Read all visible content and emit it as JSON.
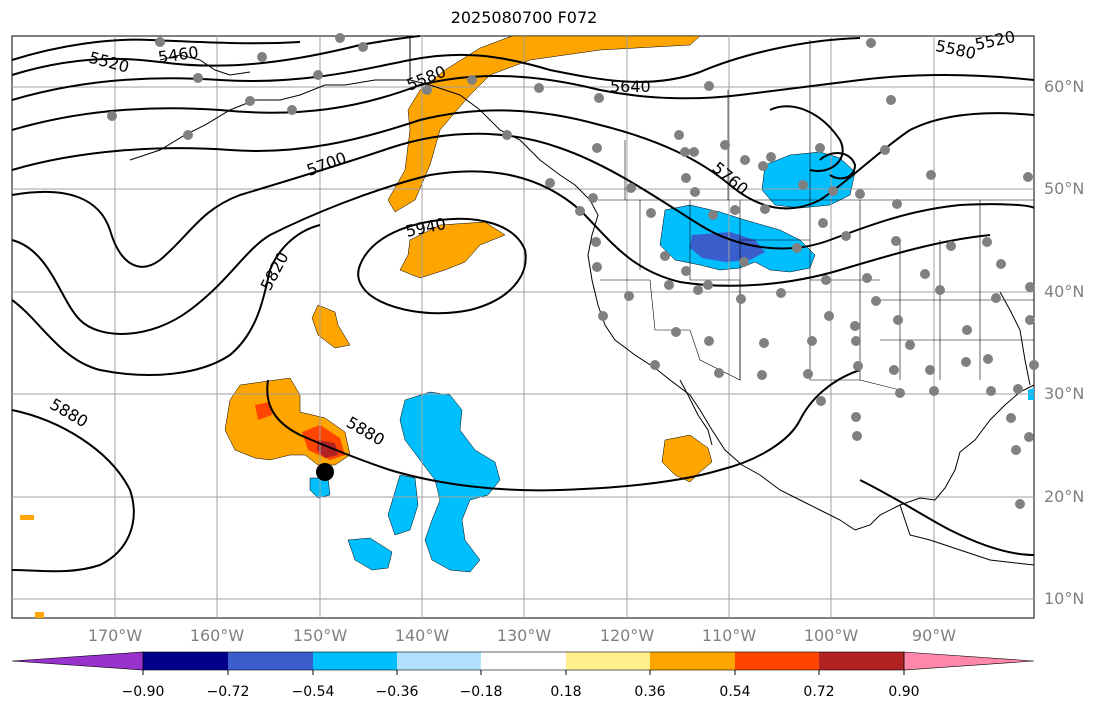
{
  "title": "2025080700 F072",
  "lat_labels": [
    "60°N",
    "50°N",
    "40°N",
    "30°N",
    "20°N",
    "10°N"
  ],
  "lon_labels": [
    "170°W",
    "160°W",
    "150°W",
    "140°W",
    "130°W",
    "120°W",
    "110°W",
    "100°W",
    "90°W"
  ],
  "contour_labels": [
    "5460",
    "5520",
    "5580",
    "5640",
    "5700",
    "5760",
    "5820",
    "5880",
    "5880",
    "5940",
    "5520",
    "5580"
  ],
  "colorbar": {
    "ticks": [
      "−0.90",
      "−0.72",
      "−0.54",
      "−0.36",
      "−0.18",
      "0.18",
      "0.36",
      "0.54",
      "0.72",
      "0.90"
    ],
    "colors": [
      "#9932cc",
      "#00008b",
      "#3a5fcd",
      "#00bfff",
      "#b0e2ff",
      "#ffffff",
      "#fff08c",
      "#ffa500",
      "#ff4500",
      "#b22222",
      "#ff88aa"
    ]
  },
  "colors": {
    "positive_orange": "#ffa500",
    "positive_red": "#ff4500",
    "positive_darkred": "#b22222",
    "negative_light": "#00bfff",
    "negative_mid": "#3a5fcd",
    "station_dot": "#808080",
    "marker": "#000000"
  }
}
